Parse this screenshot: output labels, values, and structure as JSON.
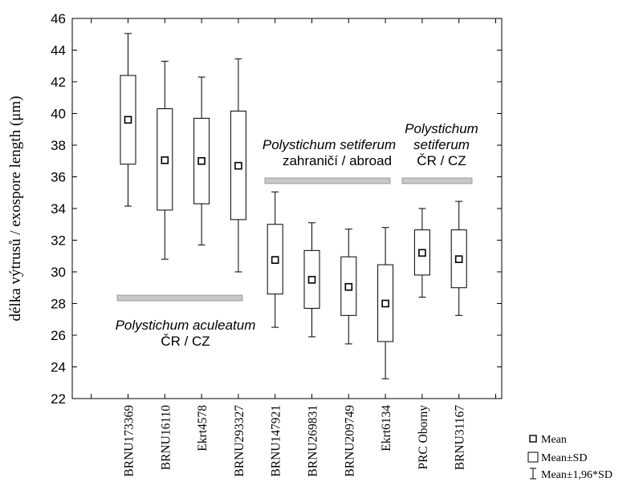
{
  "chart_data": {
    "type": "box",
    "ylabel": "délka výtrusů / exospore length (μm)",
    "ylim": [
      22,
      46
    ],
    "yticks": [
      22,
      24,
      26,
      28,
      30,
      32,
      34,
      36,
      38,
      40,
      42,
      44,
      46
    ],
    "grid": false,
    "categories": [
      "BRNU173369",
      "BRNU16110",
      "Ekrt4578",
      "BRNU293327",
      "BRNU147921",
      "BRNU269831",
      "BRNU209749",
      "Ekrt6134",
      "PRC Oborny",
      "BRNU31167"
    ],
    "series": [
      {
        "name": "Mean",
        "values": [
          39.6,
          37.05,
          37.0,
          36.7,
          30.75,
          29.5,
          29.05,
          28.0,
          31.2,
          30.8
        ]
      },
      {
        "name": "Mean±SD",
        "low": [
          36.8,
          33.9,
          34.3,
          33.3,
          28.6,
          27.7,
          27.25,
          25.6,
          29.8,
          29.0
        ],
        "high": [
          42.4,
          40.3,
          39.7,
          40.15,
          33.0,
          31.35,
          30.95,
          30.45,
          32.65,
          32.65
        ]
      },
      {
        "name": "Mean±1,96*SD",
        "low": [
          34.15,
          30.8,
          31.7,
          30.0,
          26.5,
          25.9,
          25.45,
          23.25,
          28.4,
          27.25
        ],
        "high": [
          45.05,
          43.3,
          42.3,
          43.45,
          35.05,
          33.1,
          32.7,
          32.8,
          34.0,
          34.45
        ]
      }
    ],
    "groups": [
      {
        "name_line1": "Polystichum aculeatum",
        "name_line2": "ČR / CZ",
        "from": 0,
        "to": 3,
        "bar_y": 28.35
      },
      {
        "name_line1": "Polystichum setiferum",
        "name_line2": "zahraničí / abroad",
        "from": 4,
        "to": 7,
        "bar_y": 35.75
      },
      {
        "name_line1": "Polystichum",
        "name_line2": "setiferum",
        "name_line3": "ČR / CZ",
        "from": 8,
        "to": 9,
        "bar_y": 35.75
      }
    ],
    "legend": {
      "position": "bottom-right",
      "items": [
        {
          "marker": "square",
          "label": "Mean"
        },
        {
          "marker": "box",
          "label": "Mean±SD"
        },
        {
          "marker": "whisker",
          "label": "Mean±1,96*SD"
        }
      ]
    },
    "colors": {
      "stroke": "#000000",
      "box_fill": "#ffffff",
      "group_bar": "#c8c8c8",
      "group_bar_edge": "#8c8c8c"
    }
  }
}
